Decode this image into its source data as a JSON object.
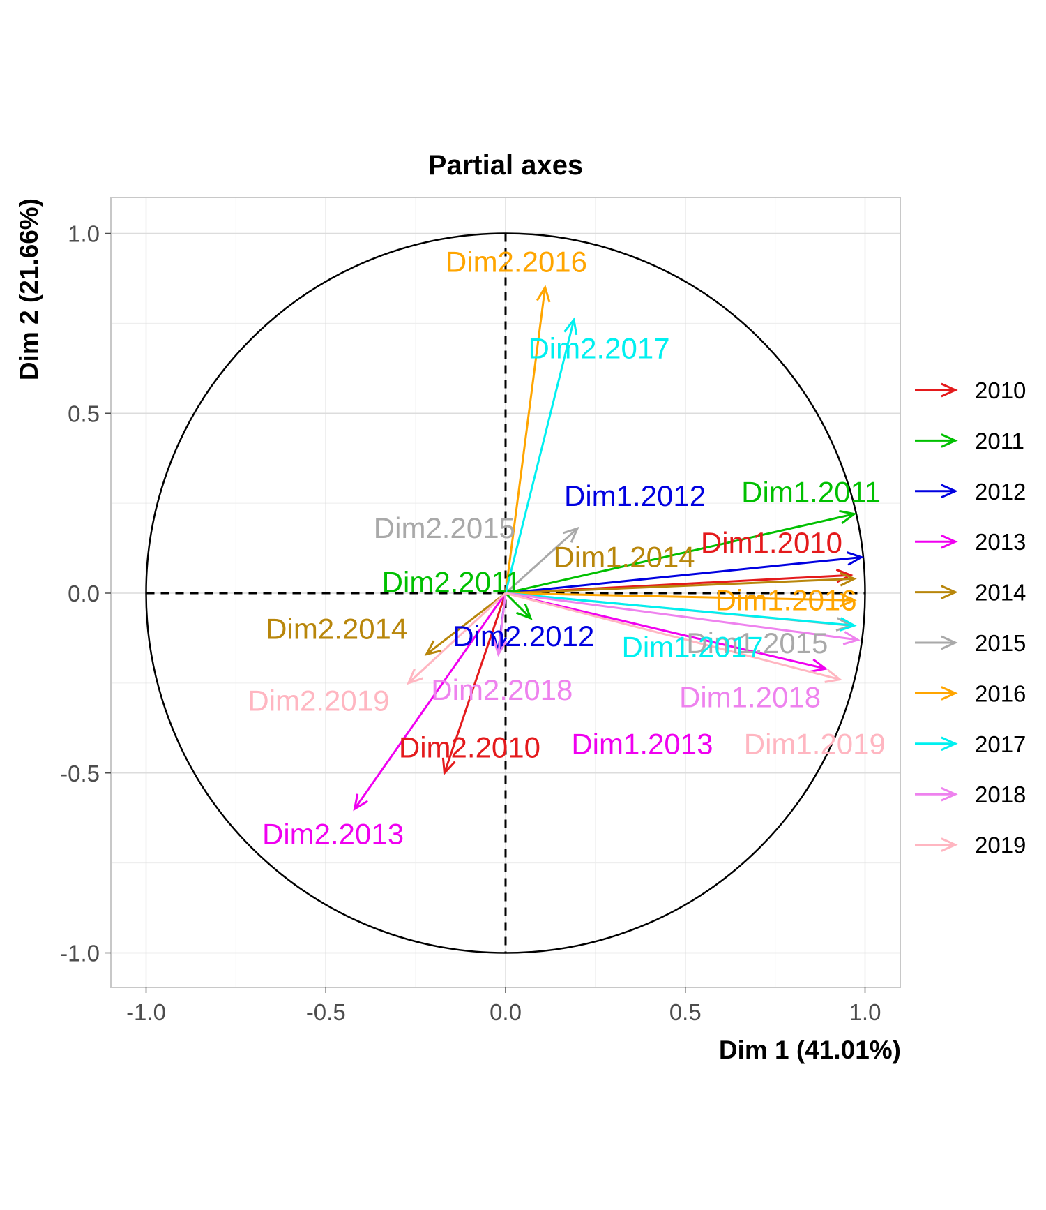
{
  "chart_data": {
    "type": "scatter",
    "subtype": "correlation-circle-arrows",
    "title": "Partial axes",
    "xlabel": "Dim 1 (41.01%)",
    "ylabel": "Dim 2 (21.66%)",
    "xlim": [
      -1.1,
      1.1
    ],
    "ylim": [
      -1.1,
      1.1
    ],
    "xticks": [
      "-1.0",
      "-0.5",
      "0.0",
      "0.5",
      "1.0"
    ],
    "yticks": [
      "-1.0",
      "-0.5",
      "0.0",
      "0.5",
      "1.0"
    ],
    "tick_values": [
      -1,
      -0.5,
      0,
      0.5,
      1
    ],
    "grid": true,
    "legend_position": "right",
    "series": [
      {
        "name": "2010",
        "color": "#E41A1C"
      },
      {
        "name": "2011",
        "color": "#00C000"
      },
      {
        "name": "2012",
        "color": "#0000E0"
      },
      {
        "name": "2013",
        "color": "#F000F0"
      },
      {
        "name": "2014",
        "color": "#B8860B"
      },
      {
        "name": "2015",
        "color": "#A9A9A9"
      },
      {
        "name": "2016",
        "color": "#FFA500"
      },
      {
        "name": "2017",
        "color": "#00F0F0"
      },
      {
        "name": "2018",
        "color": "#EE82EE"
      },
      {
        "name": "2019",
        "color": "#FFB6C1"
      }
    ],
    "arrows": [
      {
        "label": "Dim1.2010",
        "series": "2010",
        "x": 0.96,
        "y": 0.05,
        "lx": 0.74,
        "ly": 0.14
      },
      {
        "label": "Dim2.2010",
        "series": "2010",
        "x": -0.17,
        "y": -0.5,
        "lx": -0.1,
        "ly": -0.43
      },
      {
        "label": "Dim1.2011",
        "series": "2011",
        "x": 0.97,
        "y": 0.22,
        "lx": 0.85,
        "ly": 0.28
      },
      {
        "label": "Dim2.2011",
        "series": "2011",
        "x": 0.07,
        "y": -0.07,
        "lx": -0.15,
        "ly": 0.03
      },
      {
        "label": "Dim1.2012",
        "series": "2012",
        "x": 0.99,
        "y": 0.1,
        "lx": 0.36,
        "ly": 0.27
      },
      {
        "label": "Dim2.2012",
        "series": "2012",
        "x": -0.02,
        "y": -0.16,
        "lx": 0.05,
        "ly": -0.12
      },
      {
        "label": "Dim1.2013",
        "series": "2013",
        "x": 0.89,
        "y": -0.21,
        "lx": 0.38,
        "ly": -0.42
      },
      {
        "label": "Dim2.2013",
        "series": "2013",
        "x": -0.42,
        "y": -0.6,
        "lx": -0.48,
        "ly": -0.67
      },
      {
        "label": "Dim1.2014",
        "series": "2014",
        "x": 0.97,
        "y": 0.04,
        "lx": 0.33,
        "ly": 0.1
      },
      {
        "label": "Dim2.2014",
        "series": "2014",
        "x": -0.22,
        "y": -0.17,
        "lx": -0.47,
        "ly": -0.1
      },
      {
        "label": "Dim1.2015",
        "series": "2015",
        "x": 0.96,
        "y": -0.09,
        "lx": 0.7,
        "ly": -0.14
      },
      {
        "label": "Dim2.2015",
        "series": "2015",
        "x": 0.2,
        "y": 0.18,
        "lx": -0.17,
        "ly": 0.18
      },
      {
        "label": "Dim1.2016",
        "series": "2016",
        "x": 0.97,
        "y": -0.02,
        "lx": 0.78,
        "ly": -0.02
      },
      {
        "label": "Dim2.2016",
        "series": "2016",
        "x": 0.11,
        "y": 0.85,
        "lx": 0.03,
        "ly": 0.92
      },
      {
        "label": "Dim1.2017",
        "series": "2017",
        "x": 0.97,
        "y": -0.09,
        "lx": 0.52,
        "ly": -0.15
      },
      {
        "label": "Dim2.2017",
        "series": "2017",
        "x": 0.19,
        "y": 0.76,
        "lx": 0.26,
        "ly": 0.68
      },
      {
        "label": "Dim1.2018",
        "series": "2018",
        "x": 0.98,
        "y": -0.13,
        "lx": 0.68,
        "ly": -0.29
      },
      {
        "label": "Dim2.2018",
        "series": "2018",
        "x": -0.02,
        "y": -0.17,
        "lx": -0.01,
        "ly": -0.27
      },
      {
        "label": "Dim1.2019",
        "series": "2019",
        "x": 0.93,
        "y": -0.24,
        "lx": 0.86,
        "ly": -0.42
      },
      {
        "label": "Dim2.2019",
        "series": "2019",
        "x": -0.27,
        "y": -0.25,
        "lx": -0.52,
        "ly": -0.3
      }
    ]
  }
}
